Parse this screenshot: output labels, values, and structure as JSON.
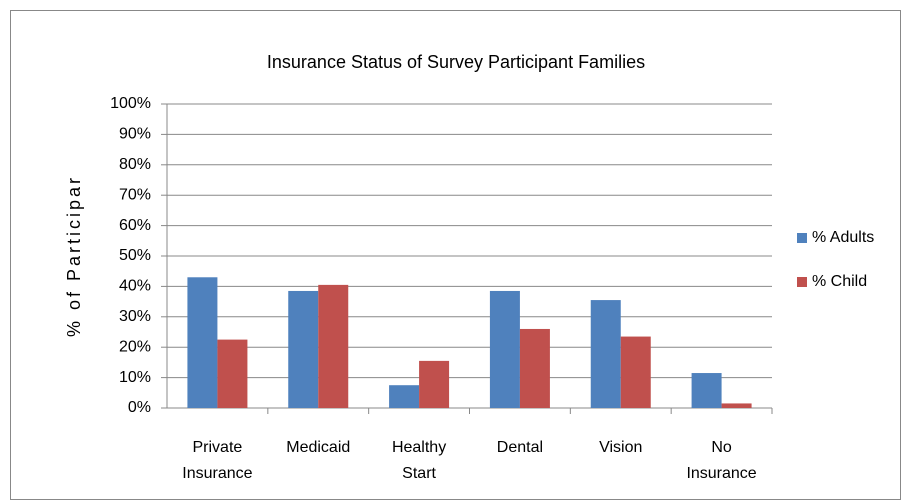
{
  "chart_data": {
    "type": "bar",
    "title": "Insurance Status of Survey Participant Families",
    "y_label": "% of Participar",
    "categories": [
      "Private Insurance",
      "Medicaid",
      "Healthy Start",
      "Dental",
      "Vision",
      "No Insurance"
    ],
    "series": [
      {
        "name": "% Adults",
        "color": "#4f81bd",
        "values": [
          43,
          38.5,
          7.5,
          38.5,
          35.5,
          11.5
        ]
      },
      {
        "name": "% Child",
        "color": "#c0504d",
        "values": [
          22.5,
          40.5,
          15.5,
          26,
          23.5,
          1.5
        ]
      }
    ],
    "ylim": [
      0,
      100
    ],
    "yticks": [
      {
        "value": 0,
        "label": "0%"
      },
      {
        "value": 10,
        "label": "10%"
      },
      {
        "value": 20,
        "label": "20%"
      },
      {
        "value": 30,
        "label": "30%"
      },
      {
        "value": 40,
        "label": "40%"
      },
      {
        "value": 50,
        "label": "50%"
      },
      {
        "value": 60,
        "label": "60%"
      },
      {
        "value": 70,
        "label": "70%"
      },
      {
        "value": 80,
        "label": "80%"
      },
      {
        "value": 90,
        "label": "90%"
      },
      {
        "value": 100,
        "label": "100%"
      }
    ],
    "grid": true,
    "legend": "right"
  }
}
